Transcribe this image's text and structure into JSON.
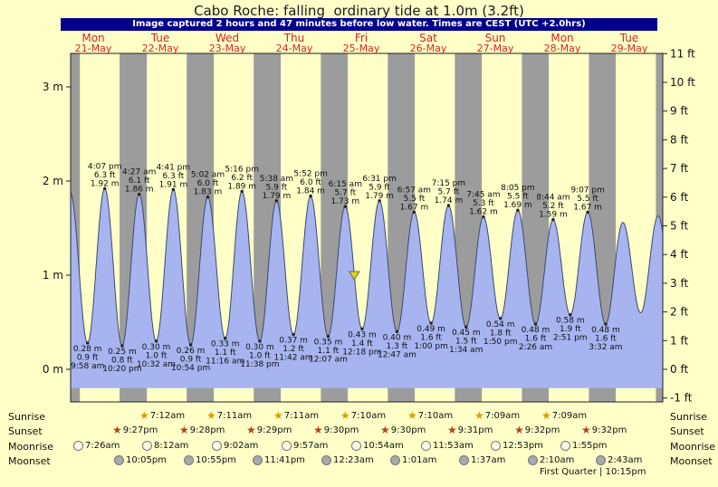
{
  "banner": "Image captured 2 hours and 47 minutes before low water. Times are CEST (UTC +2.0hrs)",
  "colors": {
    "page_bg": "#ffffc8",
    "banner_bg": "#00008b",
    "banner_text": "#ffffff",
    "day_label": "#d42820",
    "night_band": "#9c9c9c",
    "tide_fill": "#a7b4f0",
    "tide_stroke": "#3a4a6e",
    "axis_text": "#111111",
    "marker_fill": "#e3d800",
    "sunrise_star": "#d79e00",
    "sunset_star": "#b5401c",
    "moonrise_fill": "#ffffe6",
    "moonset_fill": "#a9a9a9"
  },
  "chart_data": {
    "type": "area",
    "title": "Cabo Roche: falling  ordinary tide at 1.0m (3.2ft)",
    "x_days": [
      {
        "name": "Mon",
        "date": "21-May"
      },
      {
        "name": "Tue",
        "date": "22-May"
      },
      {
        "name": "Wed",
        "date": "23-May"
      },
      {
        "name": "Thu",
        "date": "24-May"
      },
      {
        "name": "Fri",
        "date": "25-May"
      },
      {
        "name": "Sat",
        "date": "26-May"
      },
      {
        "name": "Sun",
        "date": "27-May"
      },
      {
        "name": "Mon",
        "date": "28-May"
      },
      {
        "name": "Tue",
        "date": "29-May"
      }
    ],
    "y_left_unit": "m",
    "y_right_unit": "ft",
    "y_left_ticks": [
      "0 m",
      "1 m",
      "2 m",
      "3 m"
    ],
    "y_right_ticks": [
      "-1 ft",
      "0 ft",
      "1 ft",
      "2 ft",
      "3 ft",
      "4 ft",
      "5 ft",
      "6 ft",
      "7 ft",
      "8 ft",
      "9 ft",
      "10 ft",
      "11 ft"
    ],
    "extrema": [
      {
        "kind": "high",
        "day": 0,
        "time": "3:45 am",
        "m": 1.88,
        "lines": [],
        "estimated": true
      },
      {
        "kind": "low",
        "day": 0,
        "time": "9:58 am",
        "m": 0.28,
        "lines": [
          "0.28 m",
          "0.9 ft",
          "9:58 am"
        ]
      },
      {
        "kind": "high",
        "day": 0,
        "time": "4:07 pm",
        "m": 1.92,
        "lines": [
          "4:07 pm",
          "6.3 ft",
          "1.92 m"
        ]
      },
      {
        "kind": "low",
        "day": 0,
        "time": "10:20 pm",
        "m": 0.25,
        "lines": [
          "0.25 m",
          "0.8 ft",
          "10:20 pm"
        ]
      },
      {
        "kind": "high",
        "day": 1,
        "time": "4:27 am",
        "m": 1.86,
        "lines": [
          "4:27 am",
          "6.1 ft",
          "1.86 m"
        ]
      },
      {
        "kind": "low",
        "day": 1,
        "time": "10:32 am",
        "m": 0.3,
        "lines": [
          "0.30 m",
          "1.0 ft",
          "10:32 am"
        ]
      },
      {
        "kind": "high",
        "day": 1,
        "time": "4:41 pm",
        "m": 1.91,
        "lines": [
          "4:41 pm",
          "6.3 ft",
          "1.91 m"
        ]
      },
      {
        "kind": "low",
        "day": 1,
        "time": "10:54 pm",
        "m": 0.26,
        "lines": [
          "0.26 m",
          "0.9 ft",
          "10:54 pm"
        ]
      },
      {
        "kind": "high",
        "day": 2,
        "time": "5:02 am",
        "m": 1.83,
        "lines": [
          "5:02 am",
          "6.0 ft",
          "1.83 m"
        ]
      },
      {
        "kind": "low",
        "day": 2,
        "time": "11:16 am",
        "m": 0.33,
        "lines": [
          "0.33 m",
          "1.1 ft",
          "11:16 am"
        ]
      },
      {
        "kind": "high",
        "day": 2,
        "time": "5:16 pm",
        "m": 1.89,
        "lines": [
          "5:16 pm",
          "6.2 ft",
          "1.89 m"
        ]
      },
      {
        "kind": "low",
        "day": 2,
        "time": "11:38 pm",
        "m": 0.3,
        "lines": [
          "0.30 m",
          "1.0 ft",
          "11:38 pm"
        ]
      },
      {
        "kind": "high",
        "day": 3,
        "time": "5:38 am",
        "m": 1.79,
        "lines": [
          "5:38 am",
          "5.9 ft",
          "1.79 m"
        ]
      },
      {
        "kind": "low",
        "day": 3,
        "time": "11:42 am",
        "m": 0.37,
        "lines": [
          "0.37 m",
          "1.2 ft",
          "11:42 am"
        ]
      },
      {
        "kind": "high",
        "day": 3,
        "time": "5:52 pm",
        "m": 1.84,
        "lines": [
          "5:52 pm",
          "6.0 ft",
          "1.84 m"
        ]
      },
      {
        "kind": "low",
        "day": 4,
        "time": "12:07 am",
        "m": 0.35,
        "lines": [
          "0.35 m",
          "1.1 ft",
          "12:07 am"
        ]
      },
      {
        "kind": "high",
        "day": 4,
        "time": "6:15 am",
        "m": 1.73,
        "lines": [
          "6:15 am",
          "5.7 ft",
          "1.73 m"
        ]
      },
      {
        "kind": "low",
        "day": 4,
        "time": "12:18 pm",
        "m": 0.43,
        "lines": [
          "0.43 m",
          "1.4 ft",
          "12:18 pm"
        ]
      },
      {
        "kind": "high",
        "day": 4,
        "time": "6:31 pm",
        "m": 1.79,
        "lines": [
          "6:31 pm",
          "5.9 ft",
          "1.79 m"
        ]
      },
      {
        "kind": "low",
        "day": 5,
        "time": "12:47 am",
        "m": 0.4,
        "lines": [
          "0.40 m",
          "1.3 ft",
          "12:47 am"
        ]
      },
      {
        "kind": "high",
        "day": 5,
        "time": "6:57 am",
        "m": 1.67,
        "lines": [
          "6:57 am",
          "5.5 ft",
          "1.67 m"
        ]
      },
      {
        "kind": "low",
        "day": 5,
        "time": "1:00 pm",
        "m": 0.49,
        "lines": [
          "0.49 m",
          "1.6 ft",
          "1:00 pm"
        ]
      },
      {
        "kind": "high",
        "day": 5,
        "time": "7:15 pm",
        "m": 1.74,
        "lines": [
          "7:15 pm",
          "5.7 ft",
          "1.74 m"
        ]
      },
      {
        "kind": "low",
        "day": 6,
        "time": "1:34 am",
        "m": 0.45,
        "lines": [
          "0.45 m",
          "1.5 ft",
          "1:34 am"
        ]
      },
      {
        "kind": "high",
        "day": 6,
        "time": "7:45 am",
        "m": 1.62,
        "lines": [
          "7:45 am",
          "5.3 ft",
          "1.62 m"
        ]
      },
      {
        "kind": "low",
        "day": 6,
        "time": "1:50 pm",
        "m": 0.54,
        "lines": [
          "0.54 m",
          "1.8 ft",
          "1:50 pm"
        ]
      },
      {
        "kind": "high",
        "day": 6,
        "time": "8:05 pm",
        "m": 1.69,
        "lines": [
          "8:05 pm",
          "5.5 ft",
          "1.69 m"
        ]
      },
      {
        "kind": "low",
        "day": 7,
        "time": "2:26 am",
        "m": 0.48,
        "lines": [
          "0.48 m",
          "1.6 ft",
          "2:26 am"
        ]
      },
      {
        "kind": "high",
        "day": 7,
        "time": "8:44 am",
        "m": 1.59,
        "lines": [
          "8:44 am",
          "5.2 ft",
          "1.59 m"
        ]
      },
      {
        "kind": "low",
        "day": 7,
        "time": "2:51 pm",
        "m": 0.58,
        "lines": [
          "0.58 m",
          "1.9 ft",
          "2:51 pm"
        ]
      },
      {
        "kind": "high",
        "day": 7,
        "time": "9:07 pm",
        "m": 1.67,
        "lines": [
          "9:07 pm",
          "5.5 ft",
          "1.67 m"
        ]
      },
      {
        "kind": "low",
        "day": 8,
        "time": "3:32 am",
        "m": 0.48,
        "lines": [
          "0.48 m",
          "1.6 ft",
          "3:32 am"
        ]
      },
      {
        "kind": "high",
        "day": 8,
        "time": "9:42 am",
        "m": 1.56,
        "lines": [],
        "estimated": true
      },
      {
        "kind": "low",
        "day": 8,
        "time": "4:05 pm",
        "m": 0.6,
        "lines": [],
        "estimated": true
      },
      {
        "kind": "high",
        "day": 8,
        "time": "10:20 pm",
        "m": 1.63,
        "lines": [],
        "estimated": true
      },
      {
        "kind": "low",
        "day": 9,
        "time": "4:40 am",
        "m": 0.5,
        "lines": [],
        "estimated": true
      }
    ],
    "night_bands_hours": [
      [
        0,
        7.2
      ],
      [
        21.45,
        31.2
      ],
      [
        45.47,
        55.18
      ],
      [
        69.48,
        79.18
      ],
      [
        93.5,
        103.17
      ],
      [
        117.5,
        127.17
      ],
      [
        141.52,
        151.15
      ],
      [
        165.53,
        175.15
      ],
      [
        189.53,
        199.15
      ],
      [
        213.55,
        216
      ]
    ],
    "marker": {
      "day": 4,
      "time": "9:31 am",
      "level_m": 1.0
    }
  },
  "astro": {
    "rows": [
      {
        "id": "sunrise",
        "label": "Sunrise",
        "icon": "sunrise-star",
        "events": [
          {
            "day": 1,
            "time": "7:12am"
          },
          {
            "day": 2,
            "time": "7:11am"
          },
          {
            "day": 3,
            "time": "7:11am"
          },
          {
            "day": 4,
            "time": "7:10am"
          },
          {
            "day": 5,
            "time": "7:10am"
          },
          {
            "day": 6,
            "time": "7:09am"
          },
          {
            "day": 7,
            "time": "7:09am"
          }
        ]
      },
      {
        "id": "sunset",
        "label": "Sunset",
        "icon": "sunset-star",
        "events": [
          {
            "day": 0,
            "time": "9:27pm"
          },
          {
            "day": 1,
            "time": "9:28pm"
          },
          {
            "day": 2,
            "time": "9:29pm"
          },
          {
            "day": 3,
            "time": "9:30pm"
          },
          {
            "day": 4,
            "time": "9:30pm"
          },
          {
            "day": 5,
            "time": "9:31pm"
          },
          {
            "day": 6,
            "time": "9:32pm"
          },
          {
            "day": 7,
            "time": "9:32pm"
          }
        ]
      },
      {
        "id": "moonrise",
        "label": "Moonrise",
        "icon": "moonrise-circle",
        "events": [
          {
            "day": 0,
            "time": "7:26am"
          },
          {
            "day": 1,
            "time": "8:12am"
          },
          {
            "day": 2,
            "time": "9:02am"
          },
          {
            "day": 3,
            "time": "9:57am"
          },
          {
            "day": 4,
            "time": "10:54am"
          },
          {
            "day": 5,
            "time": "11:53am"
          },
          {
            "day": 6,
            "time": "12:53pm"
          },
          {
            "day": 7,
            "time": "1:55pm"
          }
        ]
      },
      {
        "id": "moonset",
        "label": "Moonset",
        "icon": "moonset-circle",
        "events": [
          {
            "day": 0,
            "time": "10:05pm"
          },
          {
            "day": 1,
            "time": "10:55pm"
          },
          {
            "day": 2,
            "time": "11:41pm"
          },
          {
            "day": 4,
            "time": "12:23am"
          },
          {
            "day": 5,
            "time": "1:01am"
          },
          {
            "day": 6,
            "time": "1:37am"
          },
          {
            "day": 7,
            "time": "2:10am"
          },
          {
            "day": 8,
            "time": "2:43am"
          }
        ]
      }
    ],
    "footnote": "First Quarter | 10:15pm"
  }
}
